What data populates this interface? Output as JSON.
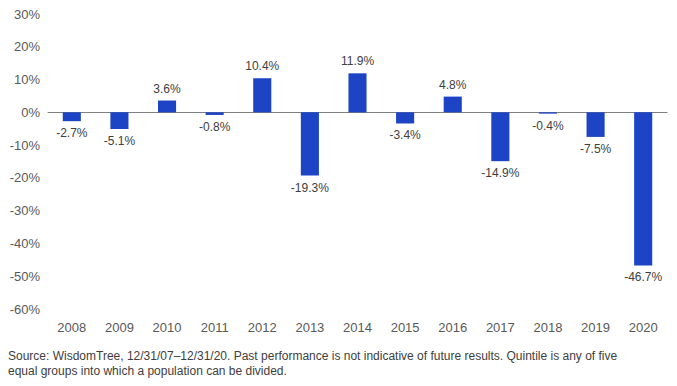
{
  "chart_data": {
    "type": "bar",
    "categories": [
      "2008",
      "2009",
      "2010",
      "2011",
      "2012",
      "2013",
      "2014",
      "2015",
      "2016",
      "2017",
      "2018",
      "2019",
      "2020"
    ],
    "values": [
      -2.7,
      -5.1,
      3.6,
      -0.8,
      10.4,
      -19.3,
      11.9,
      -3.4,
      4.8,
      -14.9,
      -0.4,
      -7.5,
      -46.7
    ],
    "value_labels": [
      "-2.7%",
      "-5.1%",
      "3.6%",
      "-0.8%",
      "10.4%",
      "-19.3%",
      "11.9%",
      "-3.4%",
      "4.8%",
      "-14.9%",
      "-0.4%",
      "-7.5%",
      "-46.7%"
    ],
    "color": "#1c44c4",
    "ylim": [
      -60,
      30
    ],
    "yticks": [
      {
        "value": -60,
        "label": "-60%"
      },
      {
        "value": -50,
        "label": "-50%"
      },
      {
        "value": -40,
        "label": "-40%"
      },
      {
        "value": -30,
        "label": "-30%"
      },
      {
        "value": -20,
        "label": "-20%"
      },
      {
        "value": -10,
        "label": "-10%"
      },
      {
        "value": 0,
        "label": "0%"
      },
      {
        "value": 10,
        "label": "10%"
      },
      {
        "value": 20,
        "label": "20%"
      },
      {
        "value": 30,
        "label": "30%"
      }
    ],
    "grid": false,
    "data_labels": true,
    "annotations": [
      "Source: WisdomTree, 12/31/07–12/31/20. Past performance is not indicative of future results. Quintile is any of five equal groups into which a population can be divided."
    ]
  }
}
